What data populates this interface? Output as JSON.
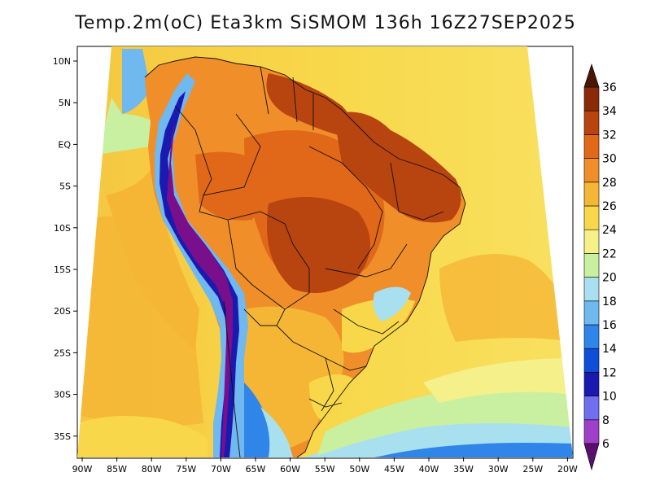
{
  "title": "Temp.2m(oC) Eta3km SiSMOM 136h 16Z27SEP2025",
  "map": {
    "variable": "Temperature at 2 m",
    "units": "oC",
    "region": "South America",
    "lat_labels": [
      "10N",
      "5N",
      "EQ",
      "5S",
      "10S",
      "15S",
      "20S",
      "25S",
      "30S",
      "35S"
    ],
    "lon_labels": [
      "90W",
      "85W",
      "80W",
      "75W",
      "70W",
      "65W",
      "60W",
      "55W",
      "50W",
      "45W",
      "40W",
      "35W",
      "30W",
      "25W",
      "20W"
    ]
  },
  "colorbar": {
    "levels": [
      "6",
      "8",
      "10",
      "12",
      "14",
      "16",
      "18",
      "20",
      "22",
      "24",
      "26",
      "28",
      "30",
      "32",
      "34",
      "36"
    ],
    "colors": [
      "#7a0f8c",
      "#a040c8",
      "#6f6ff0",
      "#1a1ab0",
      "#0f4fd8",
      "#2f86e8",
      "#6fb8f0",
      "#a8e0f0",
      "#c8f0a0",
      "#f5f08a",
      "#f8d84a",
      "#f5b636",
      "#f08e2a",
      "#e06818",
      "#b84410",
      "#8a2a08",
      "#5a1a05"
    ],
    "below_color": "#5a0f6e",
    "above_color": "#4a1505"
  }
}
